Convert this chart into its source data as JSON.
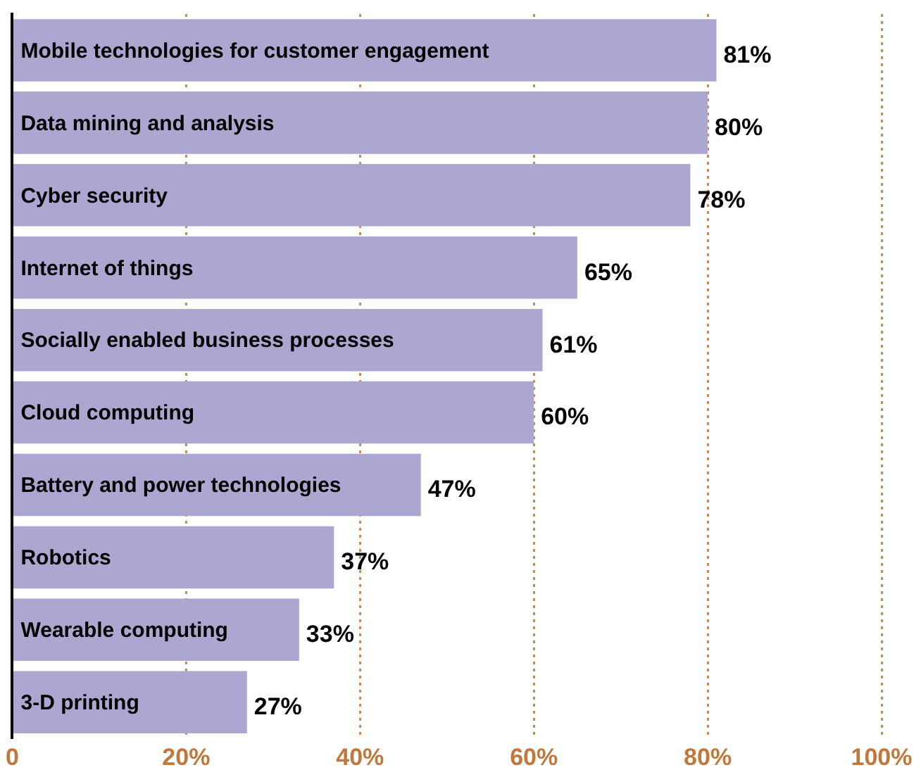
{
  "chart_data": {
    "type": "bar",
    "orientation": "horizontal",
    "categories": [
      "Mobile technologies for customer engagement",
      "Data mining and analysis",
      "Cyber security",
      "Internet of things",
      "Socially enabled business processes",
      "Cloud computing",
      "Battery and power technologies",
      "Robotics",
      "Wearable computing",
      "3-D printing"
    ],
    "values": [
      81,
      80,
      78,
      65,
      61,
      60,
      47,
      37,
      33,
      27
    ],
    "value_labels": [
      "81%",
      "80%",
      "78%",
      "65%",
      "61%",
      "60%",
      "47%",
      "37%",
      "33%",
      "27%"
    ],
    "color": "#aba7d0",
    "xlim": [
      0,
      100
    ],
    "xticks": [
      0,
      {
        "value": 20,
        "label": "20%"
      },
      {
        "value": 40,
        "label": "40%"
      },
      {
        "value": 60,
        "label": "60%"
      },
      {
        "value": 80,
        "label": "80%"
      },
      {
        "value": 100,
        "label": "100%"
      }
    ],
    "grid": "x",
    "legend": false
  }
}
